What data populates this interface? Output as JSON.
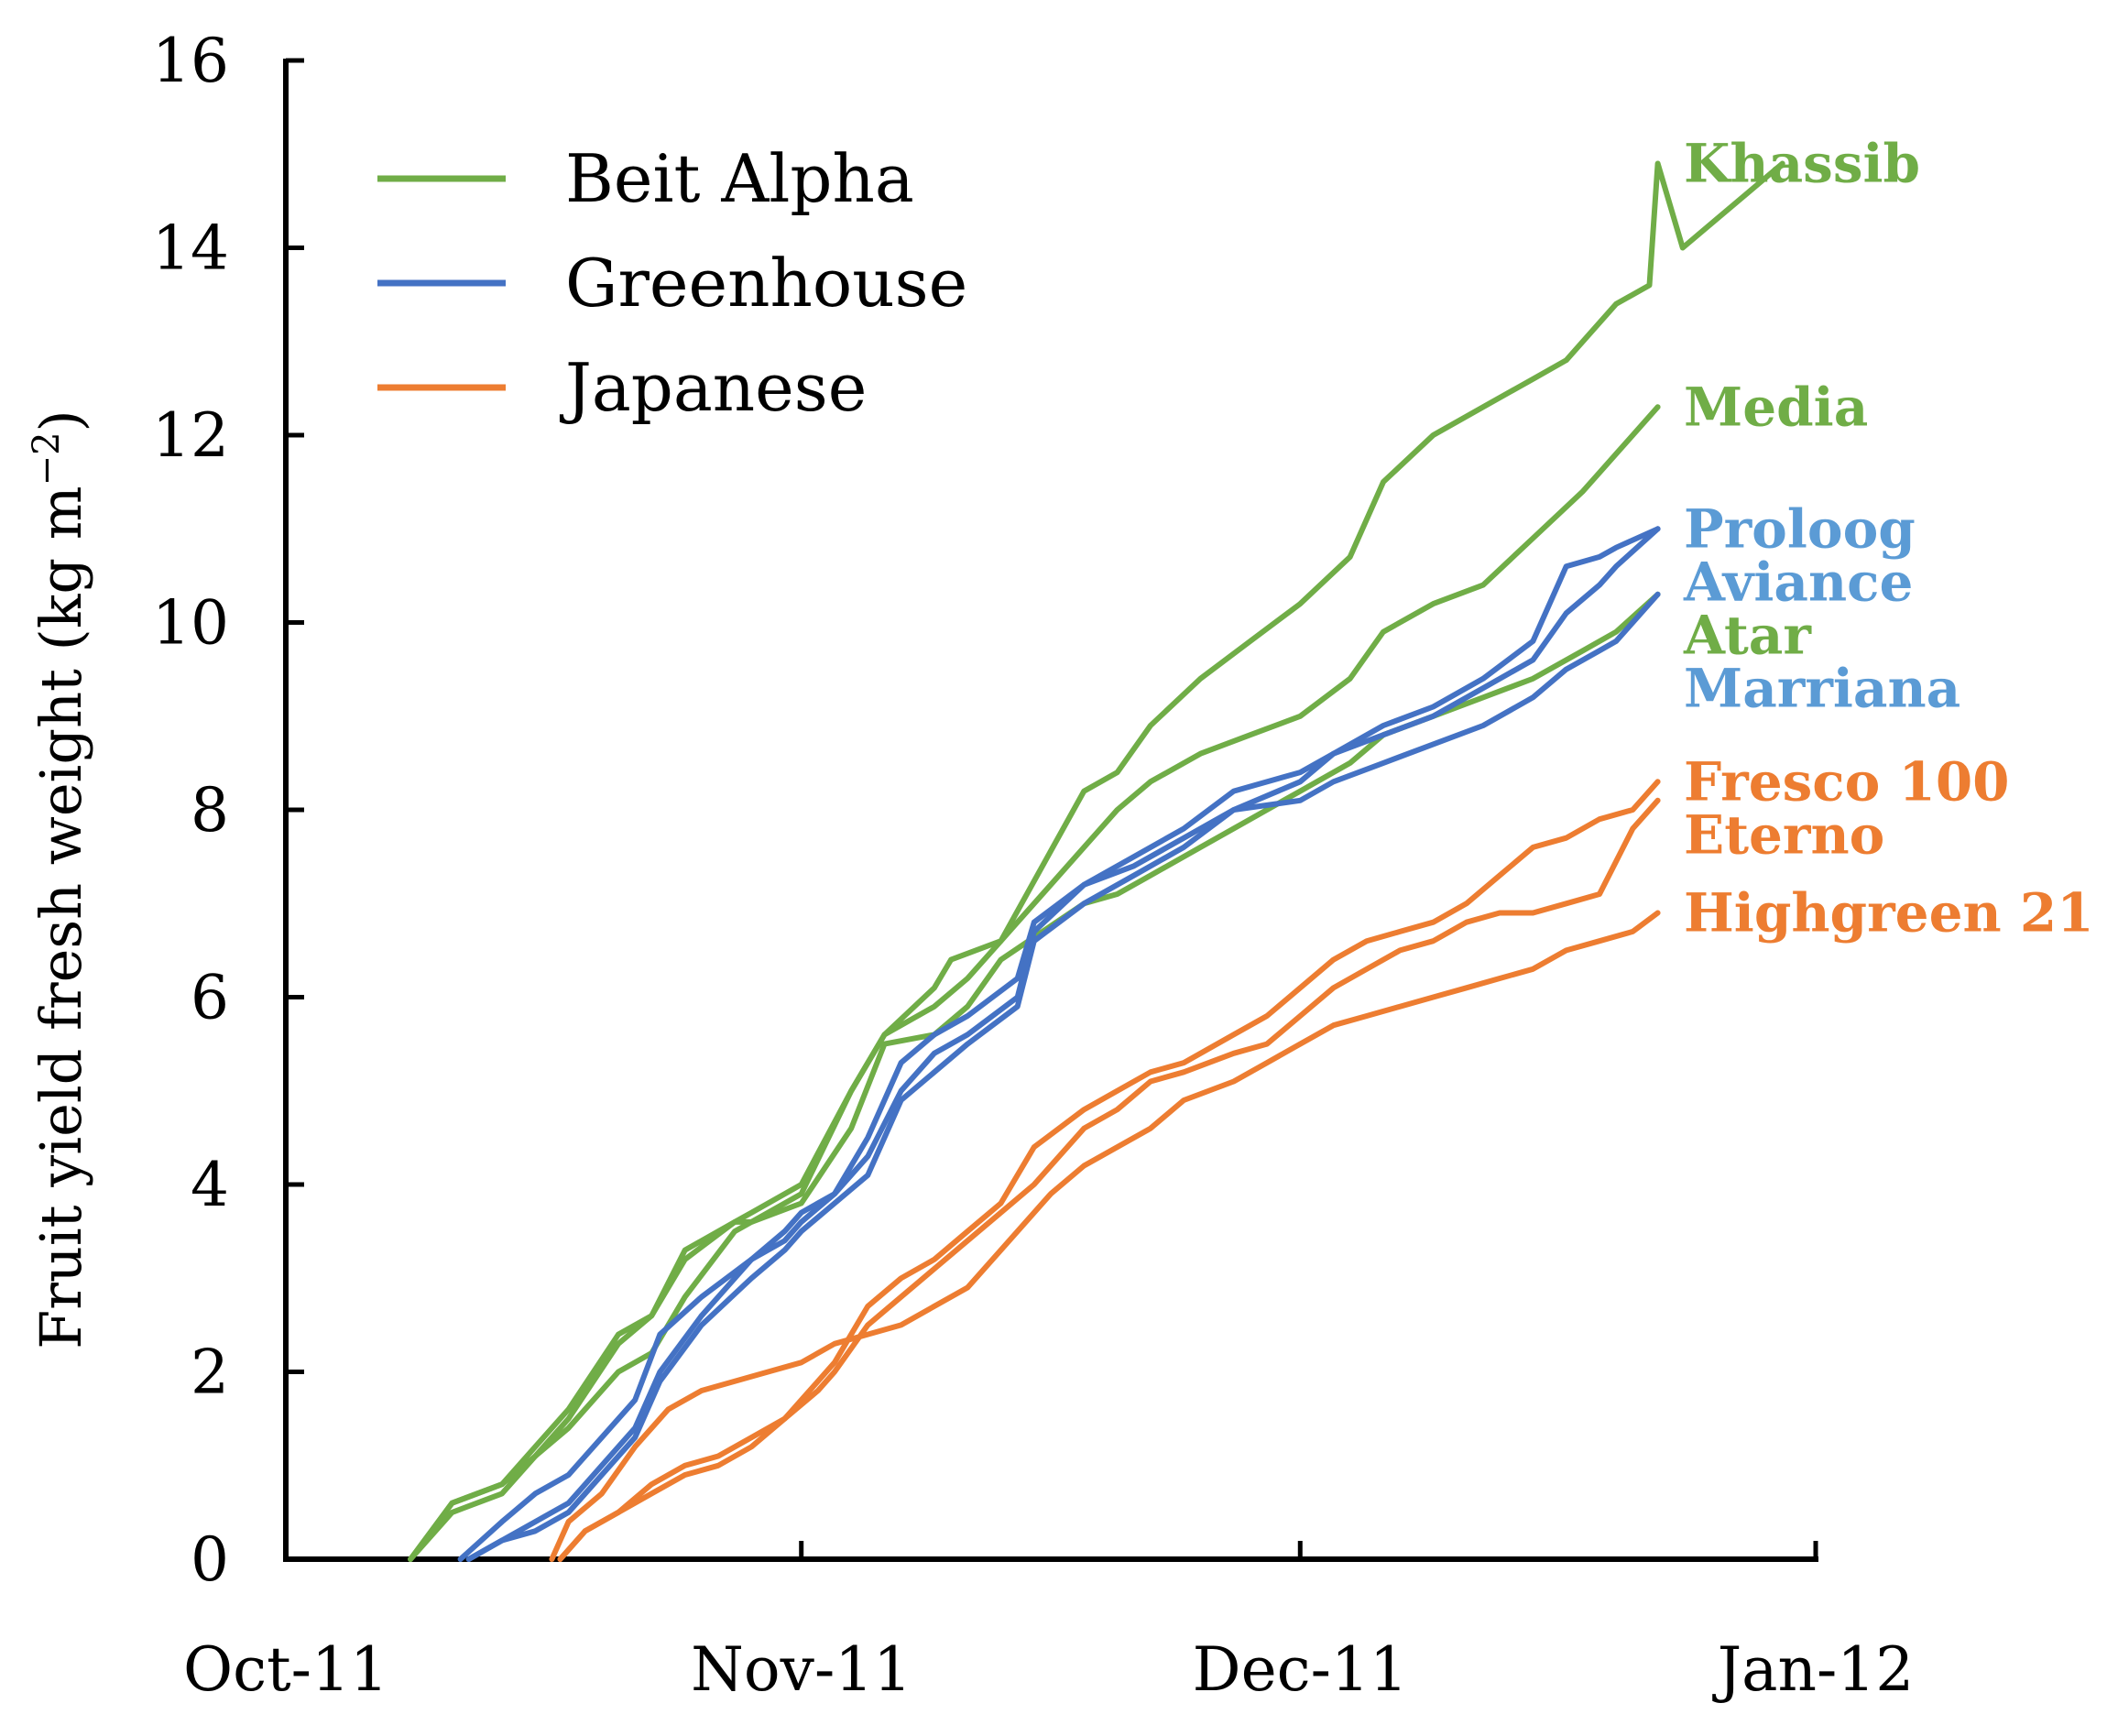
{
  "chart_data": {
    "type": "line",
    "title": "",
    "xlabel": "",
    "ylabel": "Fruit yield fresh weight (kg m",
    "ylabel_sup": "−2",
    "ylabel_close": ")",
    "ylim": [
      0,
      16
    ],
    "yticks": [
      0,
      2,
      4,
      6,
      8,
      10,
      12,
      14,
      16
    ],
    "xlim": [
      0,
      92
    ],
    "xticks": [
      {
        "label": "Oct-11",
        "day": 0
      },
      {
        "label": "Nov-11",
        "day": 31
      },
      {
        "label": "Dec-11",
        "day": 61
      },
      {
        "label": "Jan-12",
        "day": 92
      }
    ],
    "x_unit": "days since 1 Oct 2011",
    "grid": false,
    "legend_position": "top-left",
    "groups": [
      {
        "name": "Beit Alpha",
        "color": "#70ad47"
      },
      {
        "name": "Greenhouse",
        "color": "#4472c4"
      },
      {
        "name": "Japanese",
        "color": "#ed7d31"
      }
    ],
    "series": [
      {
        "name": "Khassib",
        "group": "Beit Alpha",
        "color": "#70ad47",
        "label_color": "#70ad47",
        "x": [
          7.5,
          10,
          13,
          15,
          17,
          20,
          22,
          24,
          27,
          28,
          31,
          34,
          36,
          39,
          40,
          43,
          48,
          50,
          52,
          55,
          58,
          61,
          64,
          66,
          69,
          72,
          75,
          77,
          80,
          82,
          84,
          86,
          88,
          90,
          82.5
        ],
        "y": [
          0,
          0.6,
          0.8,
          1.2,
          1.6,
          2.4,
          2.6,
          3.3,
          3.6,
          3.7,
          4.0,
          5.0,
          5.6,
          6.1,
          6.4,
          6.6,
          8.2,
          8.4,
          8.9,
          9.4,
          9.8,
          10.2,
          10.7,
          11.5,
          12.0,
          12.3,
          12.6,
          12.8,
          13.4,
          13.6,
          14.0,
          14.3,
          14.6,
          14.9,
          14.9
        ]
      },
      {
        "name": "Media",
        "group": "Beit Alpha",
        "color": "#70ad47",
        "label_color": "#70ad47",
        "x": [
          7.5,
          10,
          13,
          15,
          17,
          20,
          22,
          24,
          27,
          28,
          31,
          34,
          36,
          39,
          41,
          43,
          48,
          50,
          52,
          55,
          58,
          61,
          64,
          66,
          69,
          72,
          75,
          78,
          80,
          82.5
        ],
        "y": [
          0,
          0.6,
          0.8,
          1.1,
          1.5,
          2.3,
          2.6,
          3.2,
          3.6,
          3.6,
          3.9,
          5.0,
          5.6,
          5.9,
          6.2,
          6.6,
          7.6,
          8.0,
          8.3,
          8.6,
          8.8,
          9.0,
          9.4,
          9.9,
          10.2,
          10.4,
          10.9,
          11.4,
          11.8,
          12.3
        ]
      },
      {
        "name": "Atar",
        "group": "Beit Alpha",
        "color": "#70ad47",
        "label_color": "#70ad47",
        "x": [
          7.5,
          10,
          13,
          15,
          17,
          20,
          22,
          24,
          27,
          28,
          31,
          34,
          36,
          39,
          41,
          43,
          48,
          50,
          52,
          55,
          58,
          61,
          64,
          66,
          69,
          72,
          75,
          78,
          80,
          82.5
        ],
        "y": [
          0,
          0.5,
          0.7,
          1.1,
          1.4,
          2.0,
          2.2,
          2.8,
          3.5,
          3.6,
          3.8,
          4.6,
          5.5,
          5.6,
          5.9,
          6.4,
          7.0,
          7.1,
          7.3,
          7.6,
          7.9,
          8.2,
          8.5,
          8.8,
          9.0,
          9.2,
          9.4,
          9.7,
          9.9,
          10.3
        ]
      },
      {
        "name": "Proloog",
        "group": "Greenhouse",
        "color": "#4472c4",
        "label_color": "#5b9bd5",
        "x": [
          10.5,
          13,
          15,
          17,
          19,
          21,
          22.5,
          25,
          28,
          30,
          31,
          33,
          35,
          37,
          39,
          41,
          44,
          45,
          48,
          51,
          54,
          57,
          61,
          63,
          66,
          69,
          72,
          75,
          77,
          79,
          80,
          82.5
        ],
        "y": [
          0,
          0.4,
          0.7,
          0.9,
          1.3,
          1.7,
          2.4,
          2.8,
          3.2,
          3.5,
          3.7,
          3.9,
          4.5,
          5.3,
          5.6,
          5.8,
          6.2,
          6.8,
          7.2,
          7.5,
          7.8,
          8.2,
          8.4,
          8.6,
          8.9,
          9.1,
          9.4,
          9.8,
          10.6,
          10.7,
          10.8,
          11.0
        ]
      },
      {
        "name": "Aviance",
        "group": "Greenhouse",
        "color": "#4472c4",
        "label_color": "#5b9bd5",
        "x": [
          11,
          13,
          15,
          17,
          19,
          21,
          22.5,
          25,
          28,
          30,
          31,
          33,
          35,
          37,
          39,
          41,
          44,
          45,
          48,
          51,
          54,
          57,
          61,
          63,
          66,
          69,
          72,
          75,
          77,
          79,
          80,
          82.5
        ],
        "y": [
          0,
          0.2,
          0.4,
          0.6,
          1.0,
          1.4,
          2.0,
          2.6,
          3.2,
          3.4,
          3.6,
          3.9,
          4.3,
          5.0,
          5.4,
          5.6,
          6.0,
          6.7,
          7.2,
          7.4,
          7.7,
          8.0,
          8.3,
          8.6,
          8.8,
          9.0,
          9.3,
          9.6,
          10.1,
          10.4,
          10.6,
          11.0
        ]
      },
      {
        "name": "Marriana",
        "group": "Greenhouse",
        "color": "#4472c4",
        "label_color": "#5b9bd5",
        "x": [
          11,
          13,
          15,
          17,
          19,
          21,
          22.5,
          25,
          28,
          30,
          31,
          33,
          35,
          37,
          39,
          41,
          44,
          45,
          48,
          51,
          54,
          57,
          61,
          63,
          66,
          69,
          72,
          75,
          77,
          79,
          80,
          82.5
        ],
        "y": [
          0,
          0.2,
          0.3,
          0.5,
          0.9,
          1.3,
          1.9,
          2.5,
          3.0,
          3.3,
          3.5,
          3.8,
          4.1,
          4.9,
          5.2,
          5.5,
          5.9,
          6.6,
          7.0,
          7.3,
          7.6,
          8.0,
          8.1,
          8.3,
          8.5,
          8.7,
          8.9,
          9.2,
          9.5,
          9.7,
          9.8,
          10.3
        ]
      },
      {
        "name": "Fresco 100",
        "group": "Japanese",
        "color": "#ed7d31",
        "label_color": "#ed7d31",
        "x": [
          16.5,
          18,
          20,
          22,
          24,
          26,
          28,
          30,
          32,
          33,
          35,
          37,
          39,
          41,
          43,
          45,
          48,
          50,
          52,
          54,
          57,
          59,
          61,
          63,
          65,
          67,
          69,
          71,
          73,
          75,
          77,
          79,
          81,
          82.5
        ],
        "y": [
          0,
          0.3,
          0.5,
          0.8,
          1.0,
          1.1,
          1.3,
          1.5,
          1.9,
          2.1,
          2.7,
          3.0,
          3.2,
          3.5,
          3.8,
          4.4,
          4.8,
          5.0,
          5.2,
          5.3,
          5.6,
          5.8,
          6.1,
          6.4,
          6.6,
          6.7,
          6.8,
          7.0,
          7.3,
          7.6,
          7.7,
          7.9,
          8.0,
          8.3
        ]
      },
      {
        "name": "Eterno",
        "group": "Japanese",
        "color": "#ed7d31",
        "label_color": "#ed7d31",
        "x": [
          16.5,
          18,
          20,
          22,
          24,
          26,
          28,
          30,
          32,
          33,
          35,
          37,
          39,
          41,
          43,
          45,
          48,
          50,
          52,
          54,
          57,
          59,
          61,
          63,
          65,
          67,
          69,
          71,
          73,
          75,
          77,
          79,
          81,
          82.5
        ],
        "y": [
          0,
          0.3,
          0.5,
          0.7,
          0.9,
          1.0,
          1.2,
          1.5,
          1.8,
          2.0,
          2.5,
          2.8,
          3.1,
          3.4,
          3.7,
          4.0,
          4.6,
          4.8,
          5.1,
          5.2,
          5.4,
          5.5,
          5.8,
          6.1,
          6.3,
          6.5,
          6.6,
          6.8,
          6.9,
          6.9,
          7.0,
          7.1,
          7.8,
          8.1
        ]
      },
      {
        "name": "Highgreen 21",
        "group": "Japanese",
        "color": "#ed7d31",
        "label_color": "#ed7d31",
        "x": [
          16,
          17,
          19,
          21,
          23,
          25,
          27,
          29,
          31,
          33,
          35,
          37,
          39,
          41,
          43,
          46,
          48,
          50,
          52,
          54,
          57,
          59,
          61,
          63,
          65,
          67,
          69,
          71,
          73,
          75,
          77,
          79,
          81,
          82.5
        ],
        "y": [
          0,
          0.4,
          0.7,
          1.2,
          1.6,
          1.8,
          1.9,
          2.0,
          2.1,
          2.3,
          2.4,
          2.5,
          2.7,
          2.9,
          3.3,
          3.9,
          4.2,
          4.4,
          4.6,
          4.9,
          5.1,
          5.3,
          5.5,
          5.7,
          5.8,
          5.9,
          6.0,
          6.1,
          6.2,
          6.3,
          6.5,
          6.6,
          6.7,
          6.9
        ]
      }
    ]
  }
}
